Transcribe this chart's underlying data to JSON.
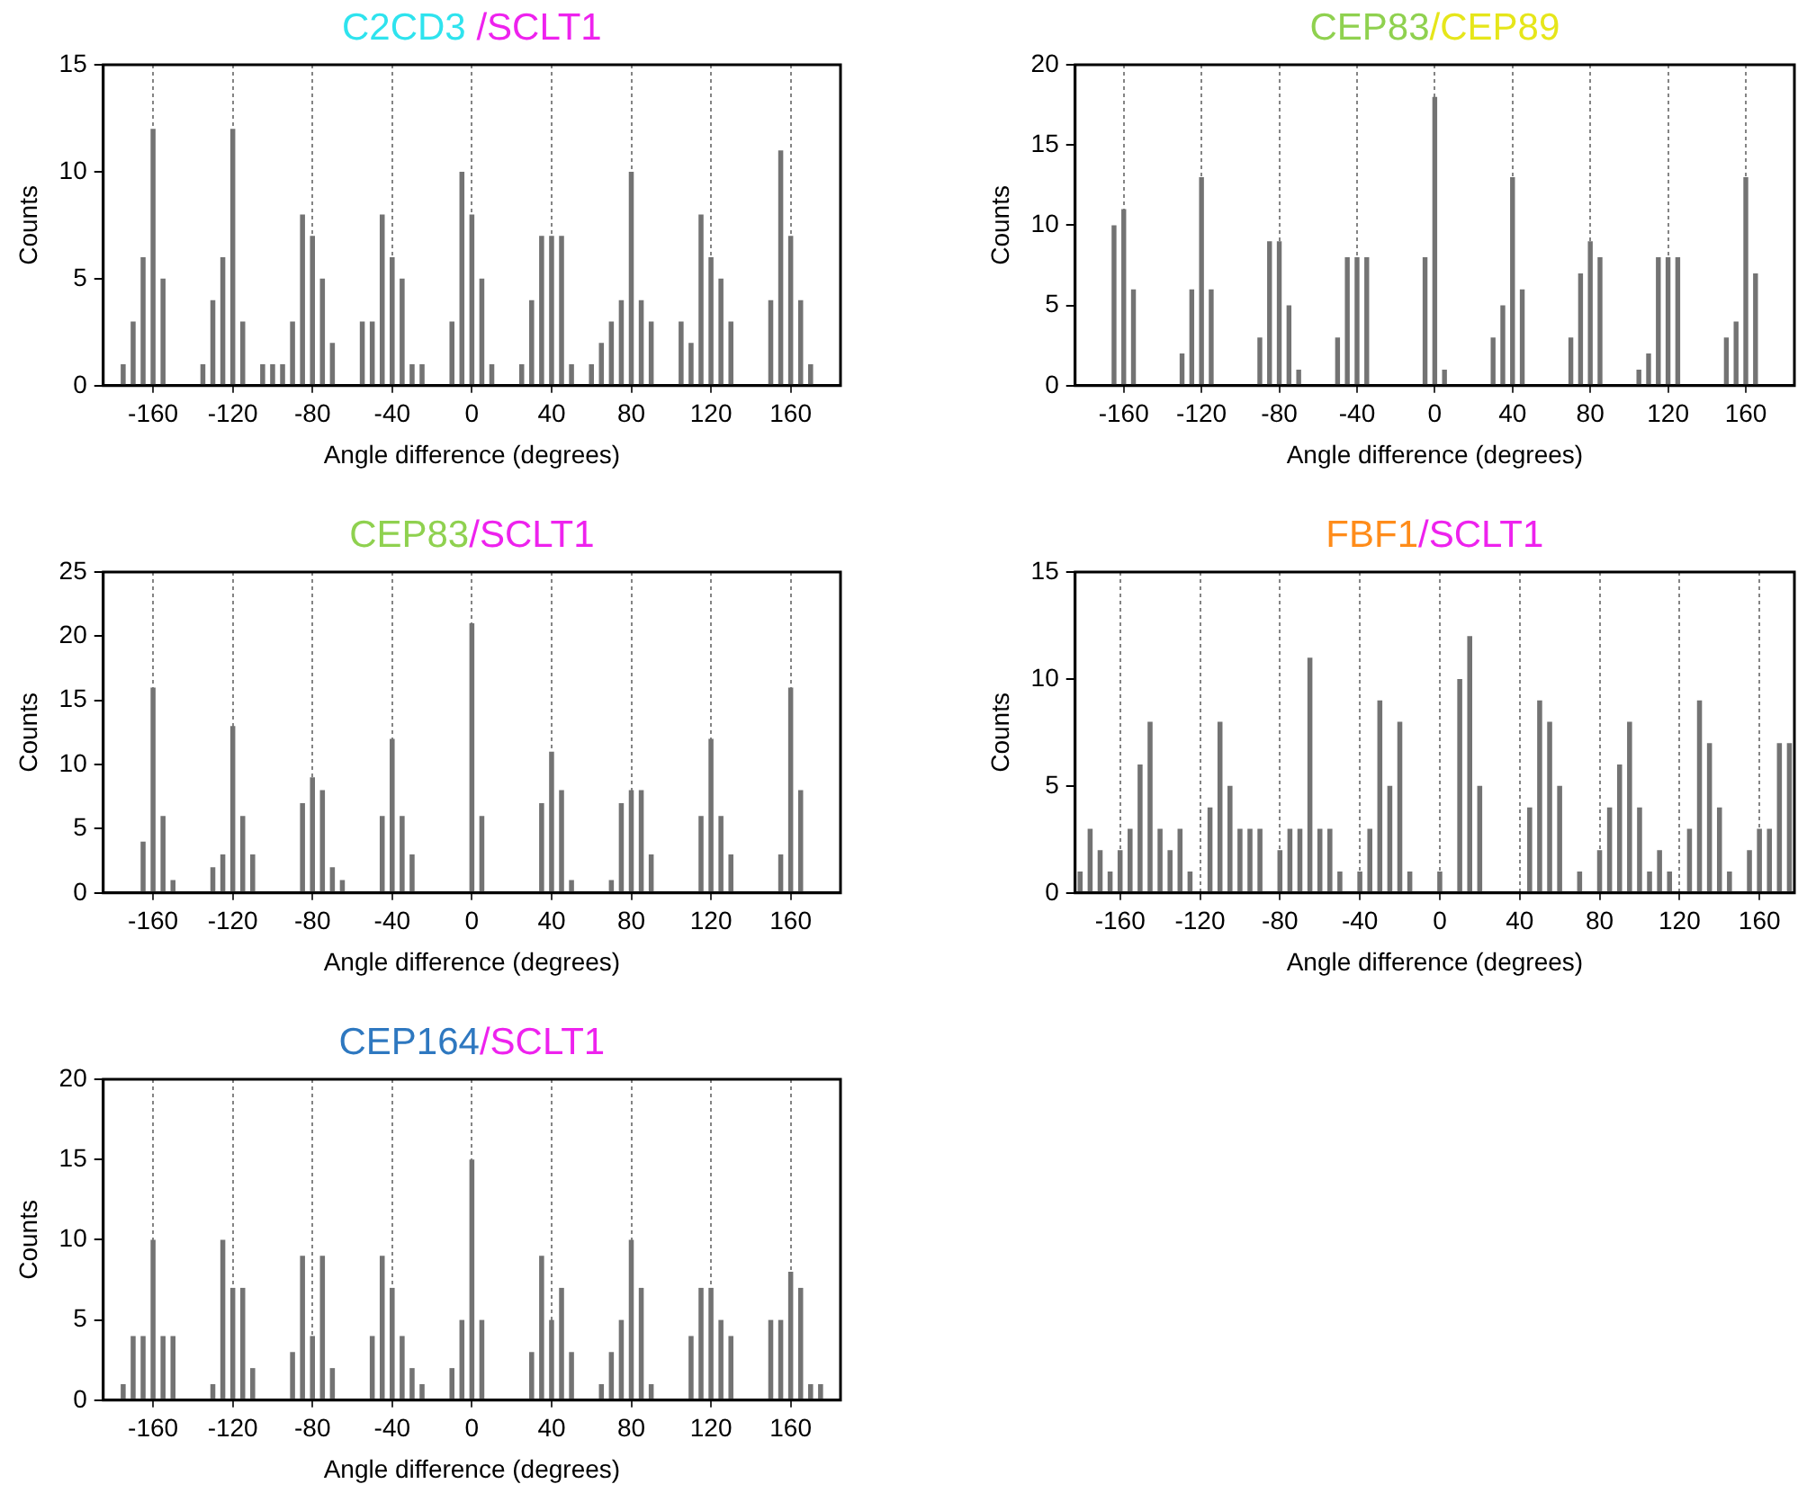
{
  "chart_data": [
    {
      "type": "histogram",
      "title": "C2CD3 /SCLT1",
      "xlabel": "Angle difference (degrees)",
      "ylabel": "Counts",
      "color": "#737373",
      "grid": "x",
      "xlim": [
        -185,
        185
      ],
      "ylim": [
        0,
        15
      ],
      "xticks": [
        -160,
        -120,
        -80,
        -40,
        0,
        40,
        80,
        120,
        160
      ],
      "yticks": [
        0,
        5,
        10,
        15
      ],
      "bins": [
        -182.5,
        -177.5,
        -172.5,
        -167.5,
        -162.5,
        -157.5,
        -152.5,
        -147.5,
        -142.5,
        -137.5,
        -132.5,
        -127.5,
        -122.5,
        -117.5,
        -112.5,
        -107.5,
        -102.5,
        -97.5,
        -92.5,
        -87.5,
        -82.5,
        -77.5,
        -72.5,
        -67.5,
        -62.5,
        -57.5,
        -52.5,
        -47.5,
        -42.5,
        -37.5,
        -32.5,
        -27.5,
        -22.5,
        -17.5,
        -12.5,
        -7.5,
        -2.5,
        2.5,
        7.5,
        12.5,
        17.5,
        22.5,
        27.5,
        32.5,
        37.5,
        42.5,
        47.5,
        52.5,
        57.5,
        62.5,
        67.5,
        72.5,
        77.5,
        82.5,
        87.5,
        92.5,
        97.5,
        102.5,
        107.5,
        112.5,
        117.5,
        122.5,
        127.5,
        132.5,
        137.5,
        142.5,
        147.5,
        152.5,
        157.5,
        162.5,
        167.5,
        172.5,
        177.5,
        182.5
      ],
      "values": [
        0,
        1,
        3,
        6,
        12,
        5,
        0,
        0,
        0,
        1,
        4,
        6,
        12,
        3,
        0,
        1,
        1,
        1,
        3,
        8,
        7,
        5,
        2,
        0,
        0,
        3,
        3,
        8,
        6,
        5,
        1,
        1,
        0,
        0,
        3,
        10,
        8,
        5,
        1,
        0,
        0,
        1,
        4,
        7,
        7,
        7,
        1,
        0,
        1,
        2,
        3,
        4,
        10,
        4,
        3,
        0,
        0,
        3,
        2,
        8,
        6,
        5,
        3,
        0,
        0,
        0,
        4,
        11,
        7,
        4,
        1,
        0,
        0
      ]
    },
    {
      "type": "histogram",
      "title": "CEP83/CEP89",
      "xlabel": "Angle difference (degrees)",
      "ylabel": "Counts",
      "color": "#737373",
      "grid": "x",
      "xlim": [
        -185,
        185
      ],
      "ylim": [
        0,
        20
      ],
      "xticks": [
        -160,
        -120,
        -80,
        -40,
        0,
        40,
        80,
        120,
        160
      ],
      "yticks": [
        0,
        5,
        10,
        15,
        20
      ],
      "bins": [
        -182.5,
        -177.5,
        -172.5,
        -167.5,
        -162.5,
        -157.5,
        -152.5,
        -147.5,
        -142.5,
        -137.5,
        -132.5,
        -127.5,
        -122.5,
        -117.5,
        -112.5,
        -107.5,
        -102.5,
        -97.5,
        -92.5,
        -87.5,
        -82.5,
        -77.5,
        -72.5,
        -67.5,
        -62.5,
        -57.5,
        -52.5,
        -47.5,
        -42.5,
        -37.5,
        -32.5,
        -27.5,
        -22.5,
        -17.5,
        -12.5,
        -7.5,
        -2.5,
        2.5,
        7.5,
        12.5,
        17.5,
        22.5,
        27.5,
        32.5,
        37.5,
        42.5,
        47.5,
        52.5,
        57.5,
        62.5,
        67.5,
        72.5,
        77.5,
        82.5,
        87.5,
        92.5,
        97.5,
        102.5,
        107.5,
        112.5,
        117.5,
        122.5,
        127.5,
        132.5,
        137.5,
        142.5,
        147.5,
        152.5,
        157.5,
        162.5,
        167.5,
        172.5,
        177.5,
        182.5
      ],
      "values": [
        0,
        0,
        0,
        10,
        11,
        6,
        0,
        0,
        0,
        0,
        2,
        6,
        13,
        6,
        0,
        0,
        0,
        0,
        3,
        9,
        9,
        5,
        1,
        0,
        0,
        0,
        3,
        8,
        8,
        8,
        0,
        0,
        0,
        0,
        0,
        8,
        18,
        1,
        0,
        0,
        0,
        0,
        3,
        5,
        13,
        6,
        0,
        0,
        0,
        0,
        3,
        7,
        9,
        8,
        0,
        0,
        0,
        1,
        2,
        8,
        8,
        8,
        0,
        0,
        0,
        0,
        3,
        4,
        13,
        7,
        0,
        0,
        0
      ]
    },
    {
      "type": "histogram",
      "title": "CEP83/SCLT1",
      "xlabel": "Angle difference (degrees)",
      "ylabel": "Counts",
      "color": "#737373",
      "grid": "x",
      "xlim": [
        -185,
        185
      ],
      "ylim": [
        0,
        25
      ],
      "xticks": [
        -160,
        -120,
        -80,
        -40,
        0,
        40,
        80,
        120,
        160
      ],
      "yticks": [
        0,
        5,
        10,
        15,
        20,
        25
      ],
      "bins": [
        -182.5,
        -177.5,
        -172.5,
        -167.5,
        -162.5,
        -157.5,
        -152.5,
        -147.5,
        -142.5,
        -137.5,
        -132.5,
        -127.5,
        -122.5,
        -117.5,
        -112.5,
        -107.5,
        -102.5,
        -97.5,
        -92.5,
        -87.5,
        -82.5,
        -77.5,
        -72.5,
        -67.5,
        -62.5,
        -57.5,
        -52.5,
        -47.5,
        -42.5,
        -37.5,
        -32.5,
        -27.5,
        -22.5,
        -17.5,
        -12.5,
        -7.5,
        -2.5,
        2.5,
        7.5,
        12.5,
        17.5,
        22.5,
        27.5,
        32.5,
        37.5,
        42.5,
        47.5,
        52.5,
        57.5,
        62.5,
        67.5,
        72.5,
        77.5,
        82.5,
        87.5,
        92.5,
        97.5,
        102.5,
        107.5,
        112.5,
        117.5,
        122.5,
        127.5,
        132.5,
        137.5,
        142.5,
        147.5,
        152.5,
        157.5,
        162.5,
        167.5,
        172.5,
        177.5,
        182.5
      ],
      "values": [
        0,
        0,
        0,
        4,
        16,
        6,
        1,
        0,
        0,
        0,
        2,
        3,
        13,
        6,
        3,
        0,
        0,
        0,
        0,
        7,
        9,
        8,
        2,
        1,
        0,
        0,
        0,
        6,
        12,
        6,
        3,
        0,
        0,
        0,
        0,
        0,
        21,
        6,
        0,
        0,
        0,
        0,
        0,
        7,
        11,
        8,
        1,
        0,
        0,
        0,
        1,
        7,
        8,
        8,
        3,
        0,
        0,
        0,
        0,
        6,
        12,
        6,
        3,
        0,
        0,
        0,
        0,
        3,
        16,
        8,
        0,
        0,
        0
      ]
    },
    {
      "type": "histogram",
      "title": "FBF1/SCLT1",
      "xlabel": "Angle difference (degrees)",
      "ylabel": "Counts",
      "color": "#737373",
      "grid": "x",
      "xlim": [
        -182.5,
        177.5
      ],
      "ylim": [
        0,
        15
      ],
      "xticks": [
        -160,
        -120,
        -80,
        -40,
        0,
        40,
        80,
        120,
        160
      ],
      "yticks": [
        0,
        5,
        10,
        15
      ],
      "bins": [
        -182.5,
        -177.5,
        -172.5,
        -167.5,
        -162.5,
        -157.5,
        -152.5,
        -147.5,
        -142.5,
        -137.5,
        -132.5,
        -127.5,
        -122.5,
        -117.5,
        -112.5,
        -107.5,
        -102.5,
        -97.5,
        -92.5,
        -87.5,
        -82.5,
        -77.5,
        -72.5,
        -67.5,
        -62.5,
        -57.5,
        -52.5,
        -47.5,
        -42.5,
        -37.5,
        -32.5,
        -27.5,
        -22.5,
        -17.5,
        -12.5,
        -7.5,
        -2.5,
        2.5,
        7.5,
        12.5,
        17.5,
        22.5,
        27.5,
        32.5,
        37.5,
        42.5,
        47.5,
        52.5,
        57.5,
        62.5,
        67.5,
        72.5,
        77.5,
        82.5,
        87.5,
        92.5,
        97.5,
        102.5,
        107.5,
        112.5,
        117.5,
        122.5,
        127.5,
        132.5,
        137.5,
        142.5,
        147.5,
        152.5,
        157.5,
        162.5,
        167.5,
        172.5,
        177.5
      ],
      "values": [
        1,
        3,
        2,
        1,
        2,
        3,
        6,
        8,
        3,
        2,
        3,
        1,
        0,
        4,
        8,
        5,
        3,
        3,
        3,
        0,
        2,
        3,
        3,
        11,
        3,
        3,
        1,
        0,
        1,
        3,
        9,
        5,
        8,
        1,
        0,
        0,
        1,
        0,
        10,
        12,
        5,
        0,
        0,
        0,
        0,
        4,
        9,
        8,
        5,
        0,
        1,
        0,
        2,
        4,
        6,
        8,
        4,
        1,
        2,
        1,
        0,
        3,
        9,
        7,
        4,
        1,
        0,
        2,
        3,
        3,
        7,
        7
      ]
    },
    {
      "type": "histogram",
      "title": "CEP164/SCLT1",
      "xlabel": "Angle difference (degrees)",
      "ylabel": "Counts",
      "color": "#737373",
      "grid": "x",
      "xlim": [
        -185,
        185
      ],
      "ylim": [
        0,
        20
      ],
      "xticks": [
        -160,
        -120,
        -80,
        -40,
        0,
        40,
        80,
        120,
        160
      ],
      "yticks": [
        0,
        5,
        10,
        15,
        20
      ],
      "bins": [
        -182.5,
        -177.5,
        -172.5,
        -167.5,
        -162.5,
        -157.5,
        -152.5,
        -147.5,
        -142.5,
        -137.5,
        -132.5,
        -127.5,
        -122.5,
        -117.5,
        -112.5,
        -107.5,
        -102.5,
        -97.5,
        -92.5,
        -87.5,
        -82.5,
        -77.5,
        -72.5,
        -67.5,
        -62.5,
        -57.5,
        -52.5,
        -47.5,
        -42.5,
        -37.5,
        -32.5,
        -27.5,
        -22.5,
        -17.5,
        -12.5,
        -7.5,
        -2.5,
        2.5,
        7.5,
        12.5,
        17.5,
        22.5,
        27.5,
        32.5,
        37.5,
        42.5,
        47.5,
        52.5,
        57.5,
        62.5,
        67.5,
        72.5,
        77.5,
        82.5,
        87.5,
        92.5,
        97.5,
        102.5,
        107.5,
        112.5,
        117.5,
        122.5,
        127.5,
        132.5,
        137.5,
        142.5,
        147.5,
        152.5,
        157.5,
        162.5,
        167.5,
        172.5,
        177.5,
        182.5
      ],
      "values": [
        0,
        1,
        4,
        4,
        10,
        4,
        4,
        0,
        0,
        0,
        1,
        10,
        7,
        7,
        2,
        0,
        0,
        0,
        3,
        9,
        4,
        9,
        2,
        0,
        0,
        0,
        4,
        9,
        7,
        4,
        2,
        1,
        0,
        0,
        2,
        5,
        15,
        5,
        0,
        0,
        0,
        0,
        3,
        9,
        5,
        7,
        3,
        0,
        0,
        1,
        3,
        5,
        10,
        7,
        1,
        0,
        0,
        0,
        4,
        7,
        7,
        5,
        4,
        0,
        0,
        0,
        5,
        5,
        8,
        7,
        1,
        1,
        0
      ]
    }
  ]
}
